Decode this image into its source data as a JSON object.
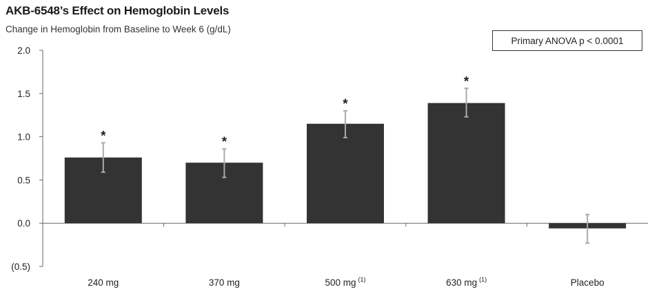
{
  "chart_data": {
    "type": "bar",
    "title": "AKB-6548’s Effect on Hemoglobin Levels",
    "subtitle": "Change in Hemoglobin from Baseline to Week 6 (g/dL)",
    "annotation": "Primary ANOVA p < 0.0001",
    "categories": [
      "240 mg",
      "370 mg",
      "500 mg",
      "630 mg",
      "Placebo"
    ],
    "category_superscripts": [
      "",
      "",
      "(1)",
      "(1)",
      ""
    ],
    "values": [
      0.76,
      0.7,
      1.15,
      1.39,
      -0.06
    ],
    "error_low": [
      0.59,
      0.53,
      0.99,
      1.23,
      -0.23
    ],
    "error_high": [
      0.93,
      0.86,
      1.3,
      1.56,
      0.1
    ],
    "significance_markers": [
      "*",
      "*",
      "*",
      "*",
      ""
    ],
    "ylim": [
      -0.5,
      2.0
    ],
    "y_ticks": [
      2.0,
      1.5,
      1.0,
      0.5,
      0.0,
      -0.5
    ],
    "y_tick_labels": [
      "2.0",
      "1.5",
      "1.0",
      "0.5",
      "0.0",
      "(0.5)"
    ],
    "bar_color": "#333333",
    "error_bar_color": "#aaaaaa",
    "grid": false,
    "legend": false
  }
}
